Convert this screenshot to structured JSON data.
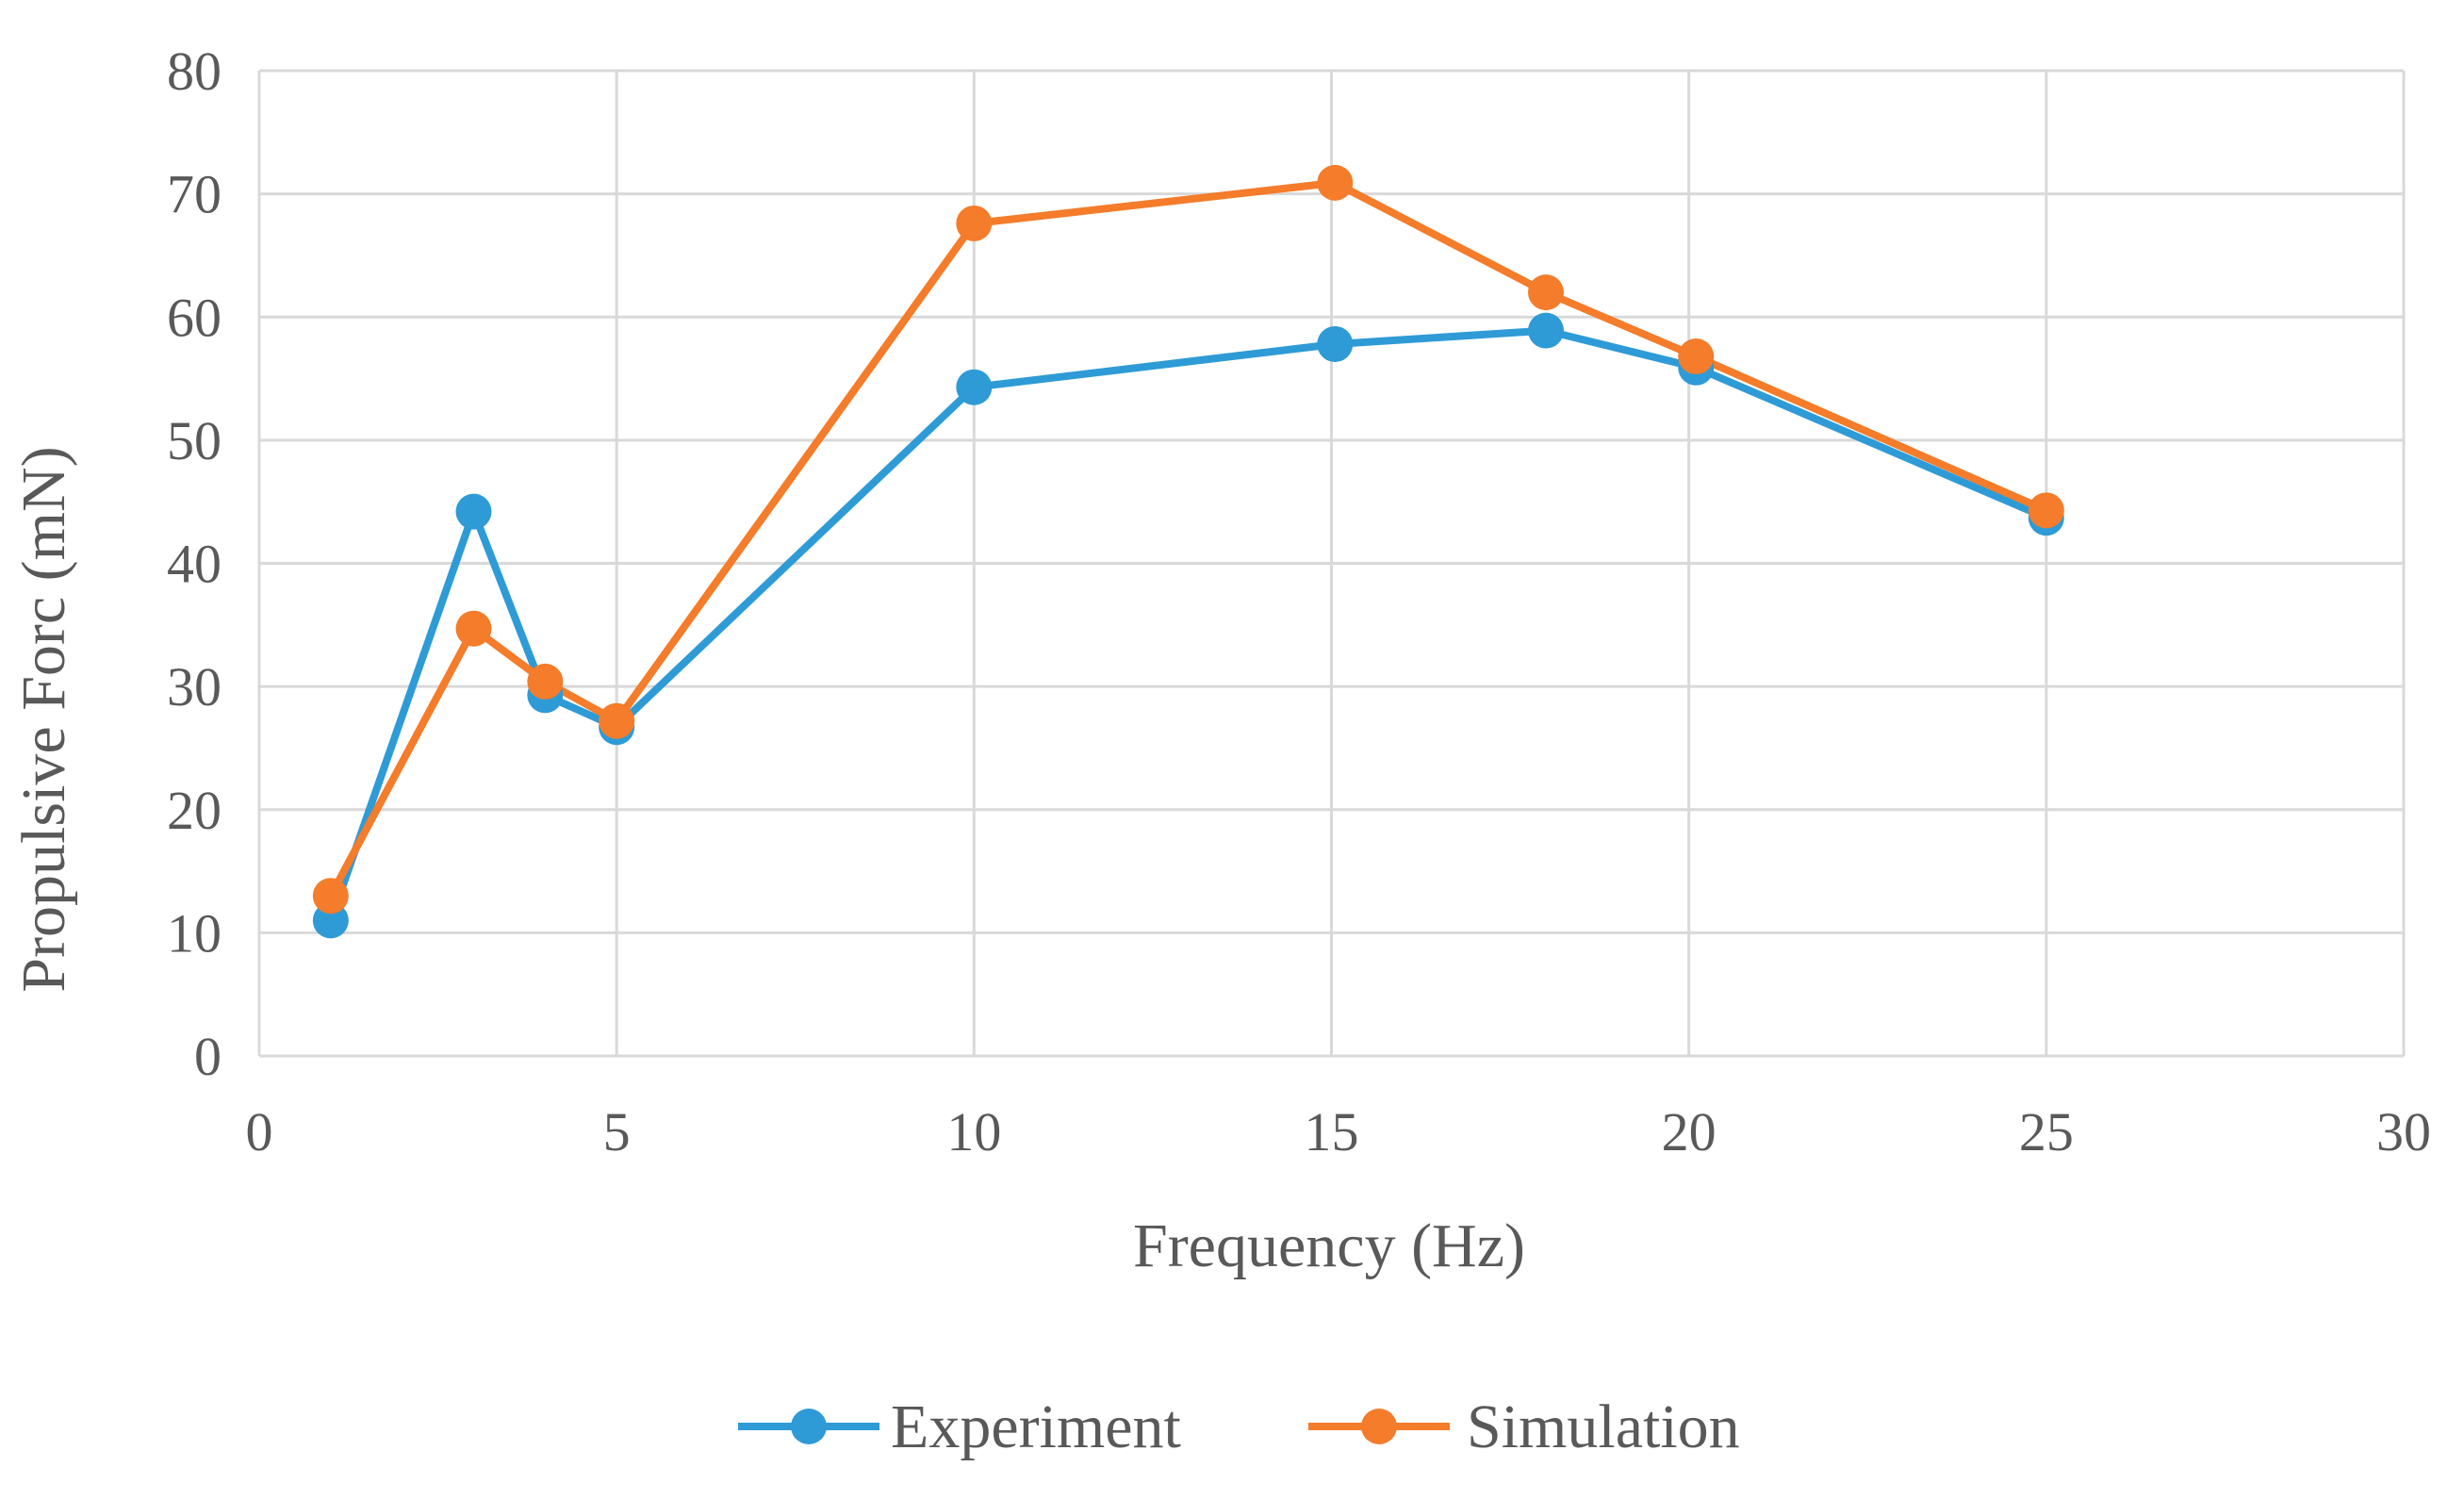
{
  "chart_data": {
    "type": "line",
    "title": "",
    "xlabel": "Frequency (Hz)",
    "ylabel": "Propulsive Forc (mN)",
    "xlim": [
      0,
      30
    ],
    "ylim": [
      0,
      80
    ],
    "xticks": [
      0,
      5,
      10,
      15,
      20,
      25,
      30
    ],
    "yticks": [
      0,
      10,
      20,
      30,
      40,
      50,
      60,
      70,
      80
    ],
    "grid": true,
    "legend_position": "bottom",
    "series": [
      {
        "name": "Experiment",
        "color": "#2E9BD6",
        "x": [
          1,
          3,
          4,
          5,
          10,
          15.05,
          18,
          20.1,
          25
        ],
        "y": [
          11,
          44.2,
          29.3,
          26.7,
          54.3,
          57.8,
          58.9,
          55.9,
          43.7
        ]
      },
      {
        "name": "Simulation",
        "color": "#F47C2A",
        "x": [
          1,
          3,
          4,
          5,
          10,
          15.05,
          18,
          20.1,
          25
        ],
        "y": [
          13,
          34.7,
          30.4,
          27.2,
          67.6,
          70.9,
          62,
          56.8,
          44.3
        ]
      }
    ]
  }
}
